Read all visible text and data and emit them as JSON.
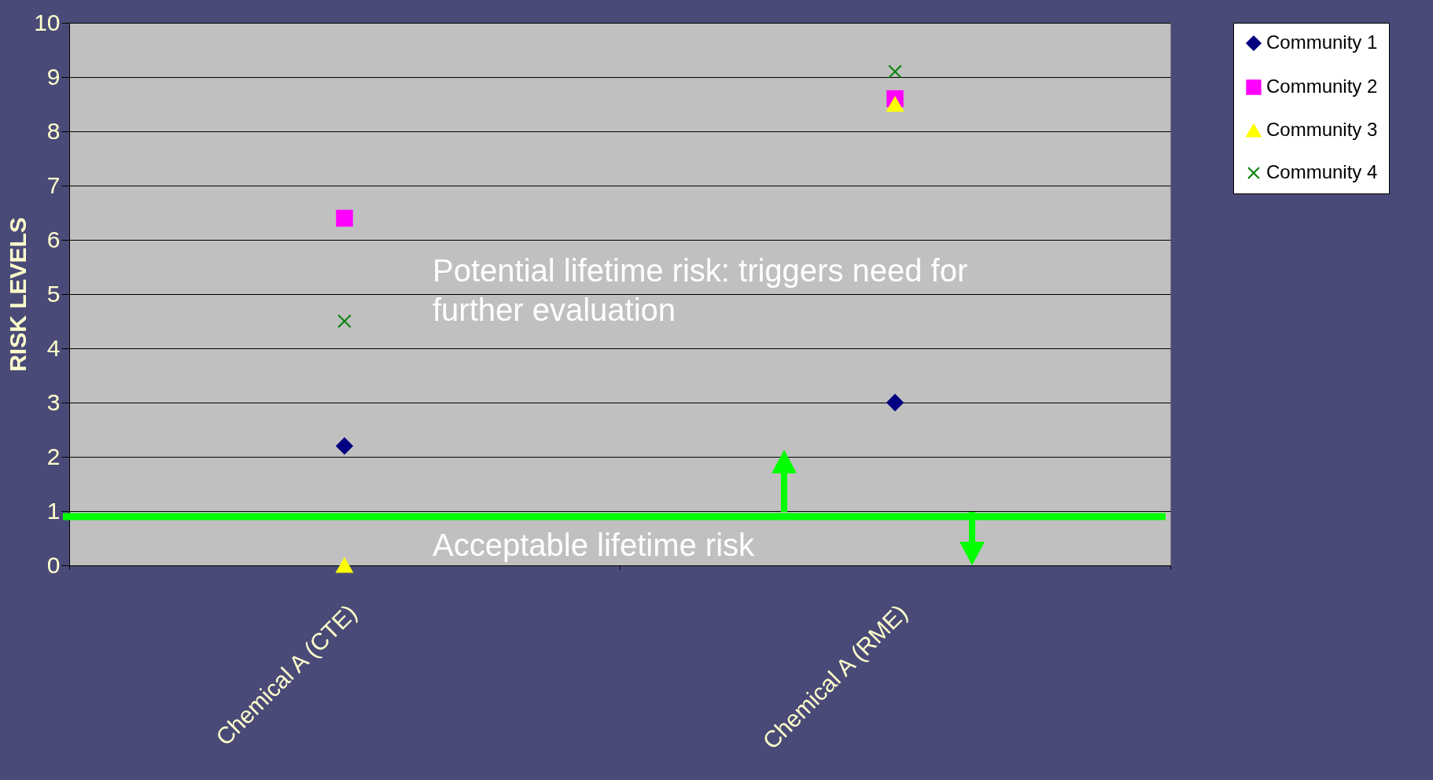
{
  "chart_data": {
    "type": "scatter",
    "ylabel": "RISK LEVELS",
    "categories": [
      "Chemical A (CTE)",
      "Chemical A (RME)"
    ],
    "series": [
      {
        "name": "Community 1",
        "color": "#000080",
        "marker": "diamond",
        "values": [
          2.2,
          3.0
        ]
      },
      {
        "name": "Community 2",
        "color": "#ff00ff",
        "marker": "square",
        "values": [
          6.4,
          8.6
        ]
      },
      {
        "name": "Community 3",
        "color": "#ffff00",
        "marker": "triangle",
        "values": [
          0,
          8.5
        ]
      },
      {
        "name": "Community 4",
        "color": "#008000",
        "marker": "cross",
        "values": [
          4.5,
          9.1
        ]
      }
    ],
    "ylim": [
      0,
      10
    ],
    "yticks": [
      0,
      1,
      2,
      3,
      4,
      5,
      6,
      7,
      8,
      9,
      10
    ],
    "grid": "y",
    "legend": "right",
    "ref_lines": [
      {
        "axis": "y",
        "value": 0.9,
        "color": "#00ff00"
      }
    ],
    "annotations": [
      "Potential lifetime risk: triggers need for further evaluation",
      "Acceptable lifetime risk"
    ]
  }
}
